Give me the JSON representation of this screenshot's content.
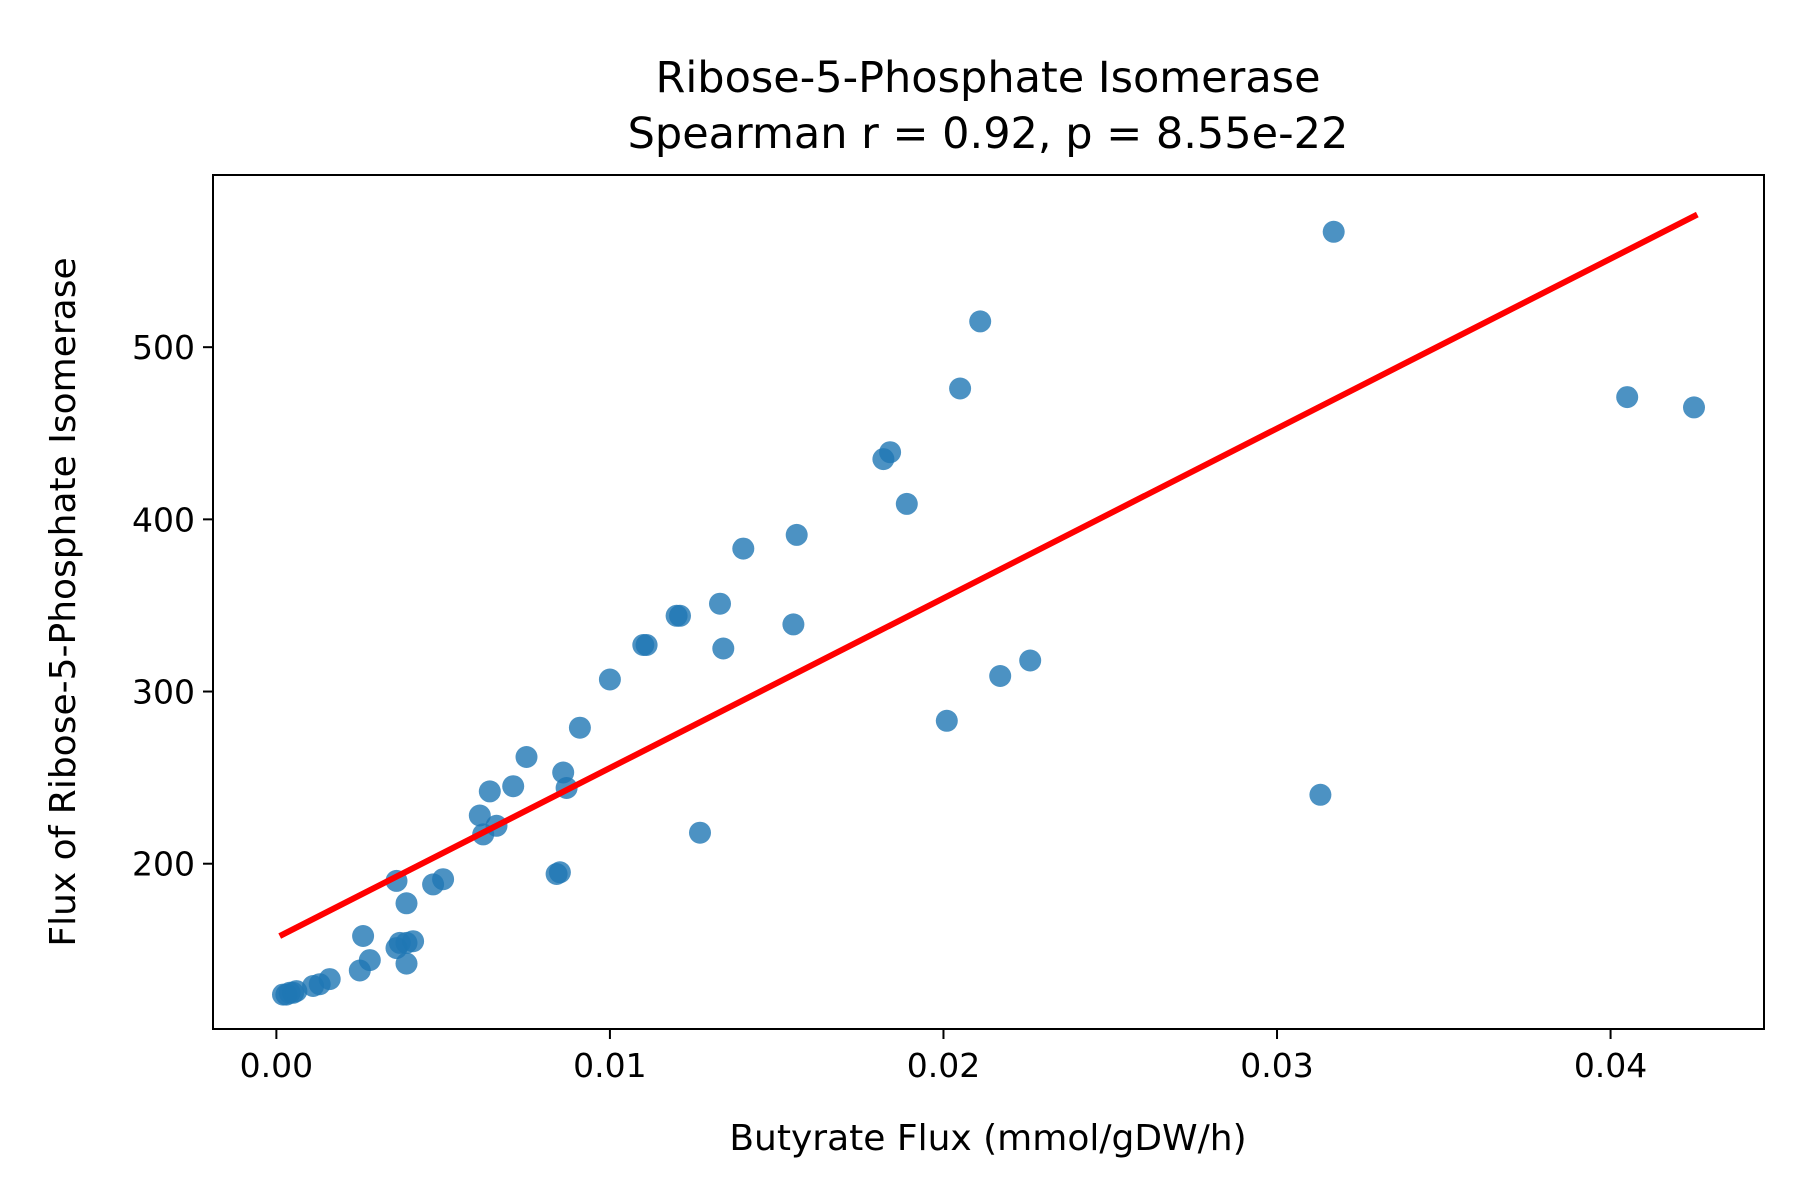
{
  "chart_data": {
    "type": "scatter",
    "title": "Ribose-5-Phosphate Isomerase",
    "subtitle": "Spearman r = 0.92, p = 8.55e-22",
    "xlabel": "Butyrate Flux (mmol/gDW/h)",
    "ylabel": "Flux of Ribose-5-Phosphate Isomerase",
    "xlim": [
      -0.0019,
      0.0446
    ],
    "ylim": [
      104,
      600
    ],
    "xticks": [
      0.0,
      0.01,
      0.02,
      0.03,
      0.04
    ],
    "xtick_labels": [
      "0.00",
      "0.01",
      "0.02",
      "0.03",
      "0.04"
    ],
    "yticks": [
      200,
      300,
      400,
      500
    ],
    "ytick_labels": [
      "200",
      "300",
      "400",
      "500"
    ],
    "grid": false,
    "colors": {
      "points": "#1f77b4",
      "fit_line": "#ff0000",
      "frame": "#000000"
    },
    "series": [
      {
        "points": [
          [
            0.0002,
            124
          ],
          [
            0.0003,
            124
          ],
          [
            0.0004,
            125
          ],
          [
            0.0005,
            125
          ],
          [
            0.0006,
            126
          ],
          [
            0.0011,
            129
          ],
          [
            0.0013,
            130
          ],
          [
            0.0016,
            133
          ],
          [
            0.0025,
            138
          ],
          [
            0.0026,
            158
          ],
          [
            0.0028,
            144
          ],
          [
            0.0036,
            190
          ],
          [
            0.0036,
            151
          ],
          [
            0.0037,
            154
          ],
          [
            0.0039,
            154
          ],
          [
            0.0039,
            142
          ],
          [
            0.0039,
            177
          ],
          [
            0.0041,
            155
          ],
          [
            0.0047,
            188
          ],
          [
            0.005,
            191
          ],
          [
            0.0061,
            228
          ],
          [
            0.0062,
            217
          ],
          [
            0.0064,
            242
          ],
          [
            0.0066,
            222
          ],
          [
            0.0071,
            245
          ],
          [
            0.0075,
            262
          ],
          [
            0.0084,
            194
          ],
          [
            0.0085,
            195
          ],
          [
            0.0086,
            253
          ],
          [
            0.0087,
            244
          ],
          [
            0.0091,
            279
          ],
          [
            0.01,
            307
          ],
          [
            0.011,
            327
          ],
          [
            0.0111,
            327
          ],
          [
            0.012,
            344
          ],
          [
            0.0121,
            344
          ],
          [
            0.0127,
            218
          ],
          [
            0.0133,
            351
          ],
          [
            0.0134,
            325
          ],
          [
            0.014,
            383
          ],
          [
            0.0155,
            339
          ],
          [
            0.0156,
            391
          ],
          [
            0.0182,
            435
          ],
          [
            0.0184,
            439
          ],
          [
            0.0189,
            409
          ],
          [
            0.0201,
            283
          ],
          [
            0.0205,
            476
          ],
          [
            0.0211,
            515
          ],
          [
            0.0217,
            309
          ],
          [
            0.0226,
            318
          ],
          [
            0.0313,
            240
          ],
          [
            0.0317,
            567
          ],
          [
            0.0405,
            471
          ],
          [
            0.0425,
            465
          ]
        ]
      }
    ],
    "fit_line": {
      "x": [
        0.0001,
        0.0426
      ],
      "y": [
        158,
        577
      ]
    }
  }
}
